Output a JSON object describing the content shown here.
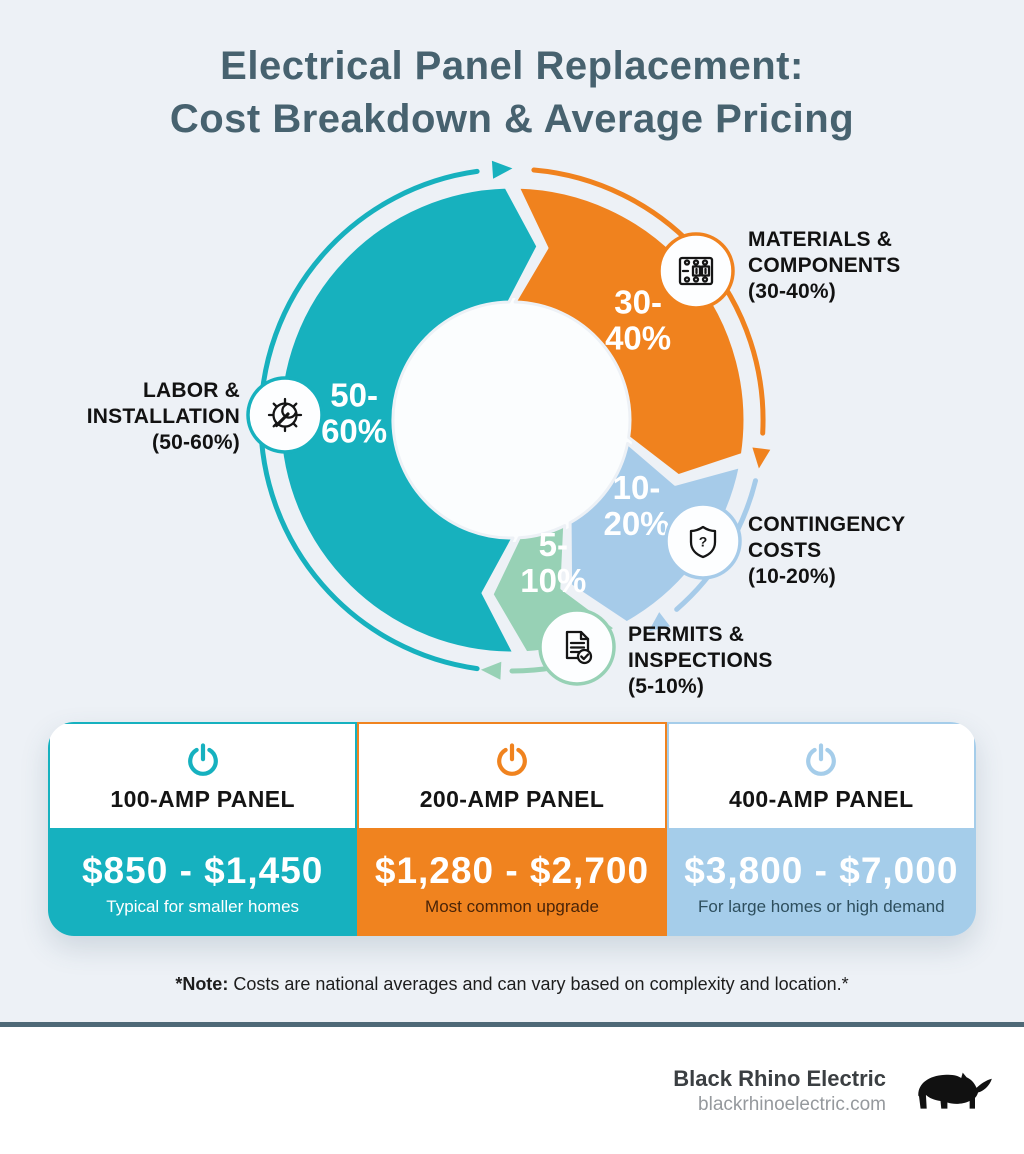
{
  "title": {
    "line1": "Electrical Panel Replacement:",
    "line2": "Cost Breakdown & Average Pricing"
  },
  "chart_data": {
    "type": "pie",
    "title": "Electrical panel replacement cost breakdown",
    "unit": "percent of total project cost",
    "legend_position": "around",
    "segments": [
      {
        "id": "labor",
        "label_lines": [
          "LABOR &",
          "INSTALLATION",
          "(50-60%)"
        ],
        "value_lines": [
          "50-",
          "60%"
        ],
        "percent_range": [
          50,
          60
        ],
        "color": "#17b1be",
        "icon": "gear-wrench-icon"
      },
      {
        "id": "materials",
        "label_lines": [
          "MATERIALS &",
          "COMPONENTS",
          "(30-40%)"
        ],
        "value_lines": [
          "30-",
          "40%"
        ],
        "percent_range": [
          30,
          40
        ],
        "color": "#f0821e",
        "icon": "circuit-breaker-icon"
      },
      {
        "id": "contingency",
        "label_lines": [
          "CONTINGENCY",
          "COSTS",
          "(10-20%)"
        ],
        "value_lines": [
          "10-",
          "20%"
        ],
        "percent_range": [
          10,
          20
        ],
        "color": "#a6cbe9",
        "icon": "shield-question-icon"
      },
      {
        "id": "permits",
        "label_lines": [
          "PERMITS &",
          "INSPECTIONS",
          "(5-10%)"
        ],
        "value_lines": [
          "5-",
          "10%"
        ],
        "percent_range": [
          5,
          10
        ],
        "color": "#97d1b5",
        "icon": "document-check-icon"
      }
    ]
  },
  "cards": [
    {
      "name": "100-AMP PANEL",
      "price": "$850 - $1,450",
      "description": "Typical for smaller homes",
      "accent": "#16b1bf",
      "description_color": "#ffffff"
    },
    {
      "name": "200-AMP PANEL",
      "price": "$1,280 - $2,700",
      "description": "Most common upgrade",
      "accent": "#f0831f",
      "description_color": "#4a2408"
    },
    {
      "name": "400-AMP PANEL",
      "price": "$3,800 - $7,000",
      "description": "For large homes or high demand",
      "accent": "#a5cdea",
      "description_color": "#2e4f5e"
    }
  ],
  "note": {
    "bold": "*Note:",
    "rest": " Costs are national averages and can vary based on complexity and location.*"
  },
  "footer": {
    "brand": "Black Rhino Electric",
    "site": "blackrhinoelectric.com"
  },
  "theme": {
    "background": "#edf1f6",
    "divider": "#4e6977",
    "title_color": "#47626f"
  }
}
